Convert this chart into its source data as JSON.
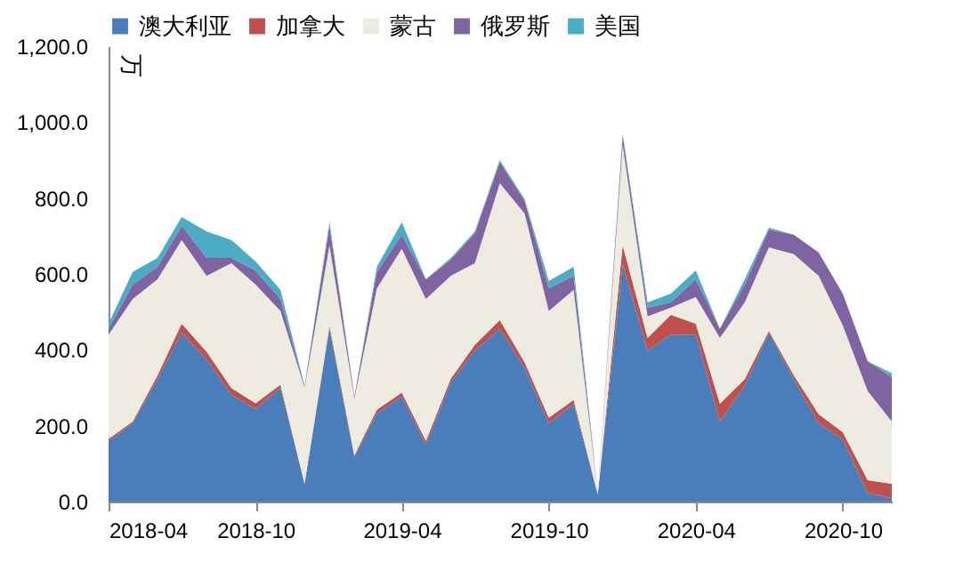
{
  "chart_data": {
    "type": "area",
    "stacked": true,
    "ylabel": "万",
    "legend": "top",
    "x": [
      "2018-04",
      "2018-05",
      "2018-06",
      "2018-07",
      "2018-08",
      "2018-09",
      "2018-10",
      "2018-11",
      "2018-12",
      "2019-01",
      "2019-02",
      "2019-03",
      "2019-04",
      "2019-05",
      "2019-06",
      "2019-07",
      "2019-08",
      "2019-09",
      "2019-10",
      "2019-11",
      "2019-12",
      "2020-01",
      "2020-02",
      "2020-03",
      "2020-04",
      "2020-05",
      "2020-06",
      "2020-07",
      "2020-08",
      "2020-09",
      "2020-10",
      "2020-11",
      "2020-12"
    ],
    "series": [
      {
        "name": "澳大利亚",
        "color": "#4a7ebb",
        "values": [
          160,
          206,
          323,
          445,
          375,
          281,
          244,
          300,
          47,
          455,
          117,
          232,
          277,
          150,
          314,
          398,
          455,
          352,
          206,
          258,
          19,
          625,
          398,
          440,
          440,
          211,
          305,
          445,
          323,
          206,
          164,
          23,
          9
        ]
      },
      {
        "name": "加拿大",
        "color": "#c0504d",
        "values": [
          5,
          5,
          10,
          24,
          20,
          18,
          15,
          8,
          0,
          9,
          5,
          10,
          10,
          10,
          10,
          15,
          23,
          15,
          15,
          10,
          0,
          50,
          33,
          52,
          29,
          47,
          18,
          5,
          10,
          24,
          19,
          33,
          38
        ]
      },
      {
        "name": "蒙古",
        "color": "#eeece1",
        "values": [
          275,
          323,
          253,
          220,
          200,
          329,
          313,
          194,
          253,
          211,
          150,
          320,
          379,
          374,
          271,
          215,
          361,
          392,
          281,
          290,
          6,
          265,
          57,
          19,
          70,
          173,
          202,
          220,
          319,
          365,
          281,
          235,
          164
        ]
      },
      {
        "name": "俄罗斯",
        "color": "#8064a2",
        "values": [
          15,
          38,
          33,
          38,
          47,
          14,
          37,
          32,
          3,
          52,
          5,
          43,
          37,
          52,
          42,
          80,
          56,
          33,
          60,
          37,
          0,
          25,
          23,
          14,
          47,
          24,
          47,
          47,
          51,
          61,
          84,
          79,
          117
        ]
      },
      {
        "name": "美国",
        "color": "#4bacc6",
        "values": [
          14,
          33,
          23,
          23,
          70,
          47,
          24,
          24,
          2,
          10,
          0,
          14,
          33,
          0,
          5,
          4,
          5,
          5,
          19,
          24,
          0,
          5,
          14,
          23,
          23,
          0,
          14,
          5,
          0,
          0,
          0,
          0,
          10
        ]
      }
    ],
    "xlim": [
      "2018-04",
      "2020-12"
    ],
    "xticks": [
      "2018-04",
      "2018-10",
      "2019-04",
      "2019-10",
      "2020-04",
      "2020-10"
    ],
    "ylim": [
      0,
      1200
    ],
    "yticks": [
      {
        "value": 0,
        "label": "0.0"
      },
      {
        "value": 200,
        "label": "200.0"
      },
      {
        "value": 400,
        "label": "400.0"
      },
      {
        "value": 600,
        "label": "600.0"
      },
      {
        "value": 800,
        "label": "800.0"
      },
      {
        "value": 1000,
        "label": "1,000.0"
      },
      {
        "value": 1200,
        "label": "1,200.0"
      }
    ]
  }
}
